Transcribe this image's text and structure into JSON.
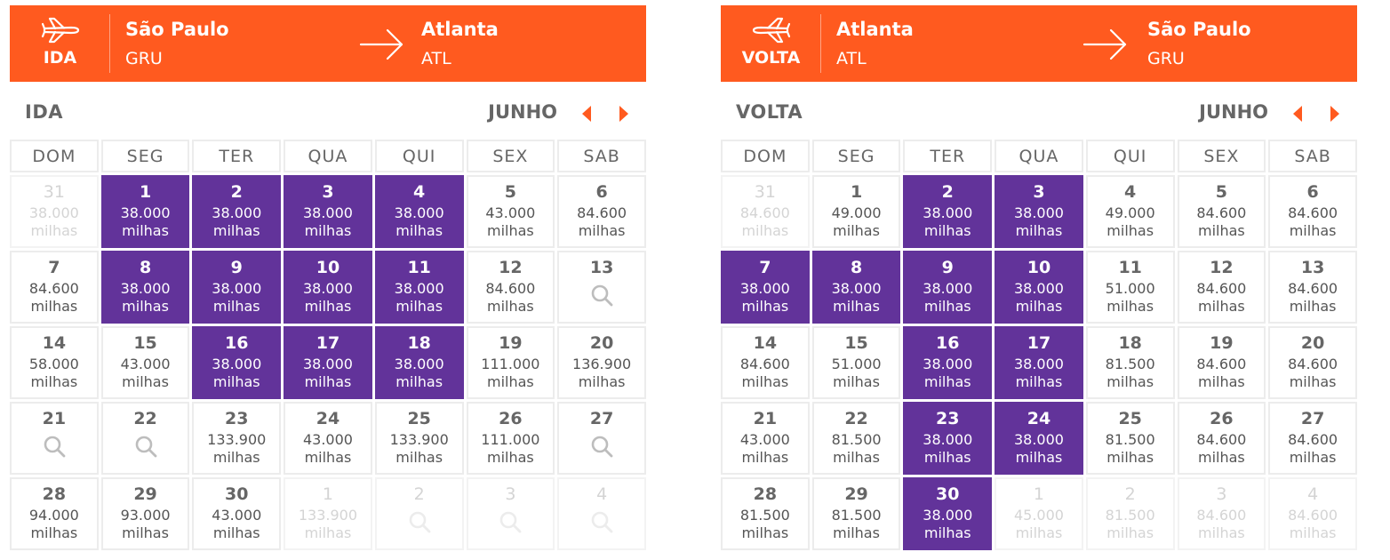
{
  "colors": {
    "banner": "#ff5a1f",
    "highlight": "#62339a",
    "nav_arrow": "#ff5a1f"
  },
  "icons": {
    "plane": "plane-icon",
    "arrow": "arrow-right-icon",
    "prev": "chevron-left-icon",
    "next": "chevron-right-icon",
    "search": "search-icon"
  },
  "weekdays": [
    "DOM",
    "SEG",
    "TER",
    "QUA",
    "QUI",
    "SEX",
    "SAB"
  ],
  "ida": {
    "direction": "IDA",
    "from": {
      "city": "São Paulo",
      "code": "GRU"
    },
    "to": {
      "city": "Atlanta",
      "code": "ATL"
    },
    "title": "IDA",
    "month": "JUNHO",
    "weeks": [
      [
        {
          "day": "31",
          "price": "38.000",
          "unit": "milhas",
          "state": "out"
        },
        {
          "day": "1",
          "price": "38.000",
          "unit": "milhas",
          "state": "hl"
        },
        {
          "day": "2",
          "price": "38.000",
          "unit": "milhas",
          "state": "hl"
        },
        {
          "day": "3",
          "price": "38.000",
          "unit": "milhas",
          "state": "hl"
        },
        {
          "day": "4",
          "price": "38.000",
          "unit": "milhas",
          "state": "hl"
        },
        {
          "day": "5",
          "price": "43.000",
          "unit": "milhas",
          "state": "normal"
        },
        {
          "day": "6",
          "price": "84.600",
          "unit": "milhas",
          "state": "normal"
        }
      ],
      [
        {
          "day": "7",
          "price": "84.600",
          "unit": "milhas",
          "state": "normal"
        },
        {
          "day": "8",
          "price": "38.000",
          "unit": "milhas",
          "state": "hl"
        },
        {
          "day": "9",
          "price": "38.000",
          "unit": "milhas",
          "state": "hl"
        },
        {
          "day": "10",
          "price": "38.000",
          "unit": "milhas",
          "state": "hl"
        },
        {
          "day": "11",
          "price": "38.000",
          "unit": "milhas",
          "state": "hl"
        },
        {
          "day": "12",
          "price": "84.600",
          "unit": "milhas",
          "state": "normal"
        },
        {
          "day": "13",
          "search": true,
          "state": "normal"
        }
      ],
      [
        {
          "day": "14",
          "price": "58.000",
          "unit": "milhas",
          "state": "normal"
        },
        {
          "day": "15",
          "price": "43.000",
          "unit": "milhas",
          "state": "normal"
        },
        {
          "day": "16",
          "price": "38.000",
          "unit": "milhas",
          "state": "hl"
        },
        {
          "day": "17",
          "price": "38.000",
          "unit": "milhas",
          "state": "hl"
        },
        {
          "day": "18",
          "price": "38.000",
          "unit": "milhas",
          "state": "hl"
        },
        {
          "day": "19",
          "price": "111.000",
          "unit": "milhas",
          "state": "normal"
        },
        {
          "day": "20",
          "price": "136.900",
          "unit": "milhas",
          "state": "normal"
        }
      ],
      [
        {
          "day": "21",
          "search": true,
          "state": "normal"
        },
        {
          "day": "22",
          "search": true,
          "state": "normal"
        },
        {
          "day": "23",
          "price": "133.900",
          "unit": "milhas",
          "state": "normal"
        },
        {
          "day": "24",
          "price": "43.000",
          "unit": "milhas",
          "state": "normal"
        },
        {
          "day": "25",
          "price": "133.900",
          "unit": "milhas",
          "state": "normal"
        },
        {
          "day": "26",
          "price": "111.000",
          "unit": "milhas",
          "state": "normal"
        },
        {
          "day": "27",
          "search": true,
          "state": "normal"
        }
      ],
      [
        {
          "day": "28",
          "price": "94.000",
          "unit": "milhas",
          "state": "normal"
        },
        {
          "day": "29",
          "price": "93.000",
          "unit": "milhas",
          "state": "normal"
        },
        {
          "day": "30",
          "price": "43.000",
          "unit": "milhas",
          "state": "normal"
        },
        {
          "day": "1",
          "price": "133.900",
          "unit": "milhas",
          "state": "out"
        },
        {
          "day": "2",
          "search": true,
          "state": "out"
        },
        {
          "day": "3",
          "search": true,
          "state": "out"
        },
        {
          "day": "4",
          "search": true,
          "state": "out"
        }
      ]
    ]
  },
  "volta": {
    "direction": "VOLTA",
    "from": {
      "city": "Atlanta",
      "code": "ATL"
    },
    "to": {
      "city": "São Paulo",
      "code": "GRU"
    },
    "title": "VOLTA",
    "month": "JUNHO",
    "weeks": [
      [
        {
          "day": "31",
          "price": "84.600",
          "unit": "milhas",
          "state": "out"
        },
        {
          "day": "1",
          "price": "49.000",
          "unit": "milhas",
          "state": "normal"
        },
        {
          "day": "2",
          "price": "38.000",
          "unit": "milhas",
          "state": "hl"
        },
        {
          "day": "3",
          "price": "38.000",
          "unit": "milhas",
          "state": "hl"
        },
        {
          "day": "4",
          "price": "49.000",
          "unit": "milhas",
          "state": "normal"
        },
        {
          "day": "5",
          "price": "84.600",
          "unit": "milhas",
          "state": "normal"
        },
        {
          "day": "6",
          "price": "84.600",
          "unit": "milhas",
          "state": "normal"
        }
      ],
      [
        {
          "day": "7",
          "price": "38.000",
          "unit": "milhas",
          "state": "hl"
        },
        {
          "day": "8",
          "price": "38.000",
          "unit": "milhas",
          "state": "hl"
        },
        {
          "day": "9",
          "price": "38.000",
          "unit": "milhas",
          "state": "hl"
        },
        {
          "day": "10",
          "price": "38.000",
          "unit": "milhas",
          "state": "hl"
        },
        {
          "day": "11",
          "price": "51.000",
          "unit": "milhas",
          "state": "normal"
        },
        {
          "day": "12",
          "price": "84.600",
          "unit": "milhas",
          "state": "normal"
        },
        {
          "day": "13",
          "price": "84.600",
          "unit": "milhas",
          "state": "normal"
        }
      ],
      [
        {
          "day": "14",
          "price": "84.600",
          "unit": "milhas",
          "state": "normal"
        },
        {
          "day": "15",
          "price": "51.000",
          "unit": "milhas",
          "state": "normal"
        },
        {
          "day": "16",
          "price": "38.000",
          "unit": "milhas",
          "state": "hl"
        },
        {
          "day": "17",
          "price": "38.000",
          "unit": "milhas",
          "state": "hl"
        },
        {
          "day": "18",
          "price": "81.500",
          "unit": "milhas",
          "state": "normal"
        },
        {
          "day": "19",
          "price": "84.600",
          "unit": "milhas",
          "state": "normal"
        },
        {
          "day": "20",
          "price": "84.600",
          "unit": "milhas",
          "state": "normal"
        }
      ],
      [
        {
          "day": "21",
          "price": "43.000",
          "unit": "milhas",
          "state": "normal"
        },
        {
          "day": "22",
          "price": "81.500",
          "unit": "milhas",
          "state": "normal"
        },
        {
          "day": "23",
          "price": "38.000",
          "unit": "milhas",
          "state": "hl"
        },
        {
          "day": "24",
          "price": "38.000",
          "unit": "milhas",
          "state": "hl"
        },
        {
          "day": "25",
          "price": "81.500",
          "unit": "milhas",
          "state": "normal"
        },
        {
          "day": "26",
          "price": "84.600",
          "unit": "milhas",
          "state": "normal"
        },
        {
          "day": "27",
          "price": "84.600",
          "unit": "milhas",
          "state": "normal"
        }
      ],
      [
        {
          "day": "28",
          "price": "81.500",
          "unit": "milhas",
          "state": "normal"
        },
        {
          "day": "29",
          "price": "81.500",
          "unit": "milhas",
          "state": "normal"
        },
        {
          "day": "30",
          "price": "38.000",
          "unit": "milhas",
          "state": "hl"
        },
        {
          "day": "1",
          "price": "45.000",
          "unit": "milhas",
          "state": "out"
        },
        {
          "day": "2",
          "price": "81.500",
          "unit": "milhas",
          "state": "out"
        },
        {
          "day": "3",
          "price": "84.600",
          "unit": "milhas",
          "state": "out"
        },
        {
          "day": "4",
          "price": "84.600",
          "unit": "milhas",
          "state": "out"
        }
      ]
    ]
  }
}
